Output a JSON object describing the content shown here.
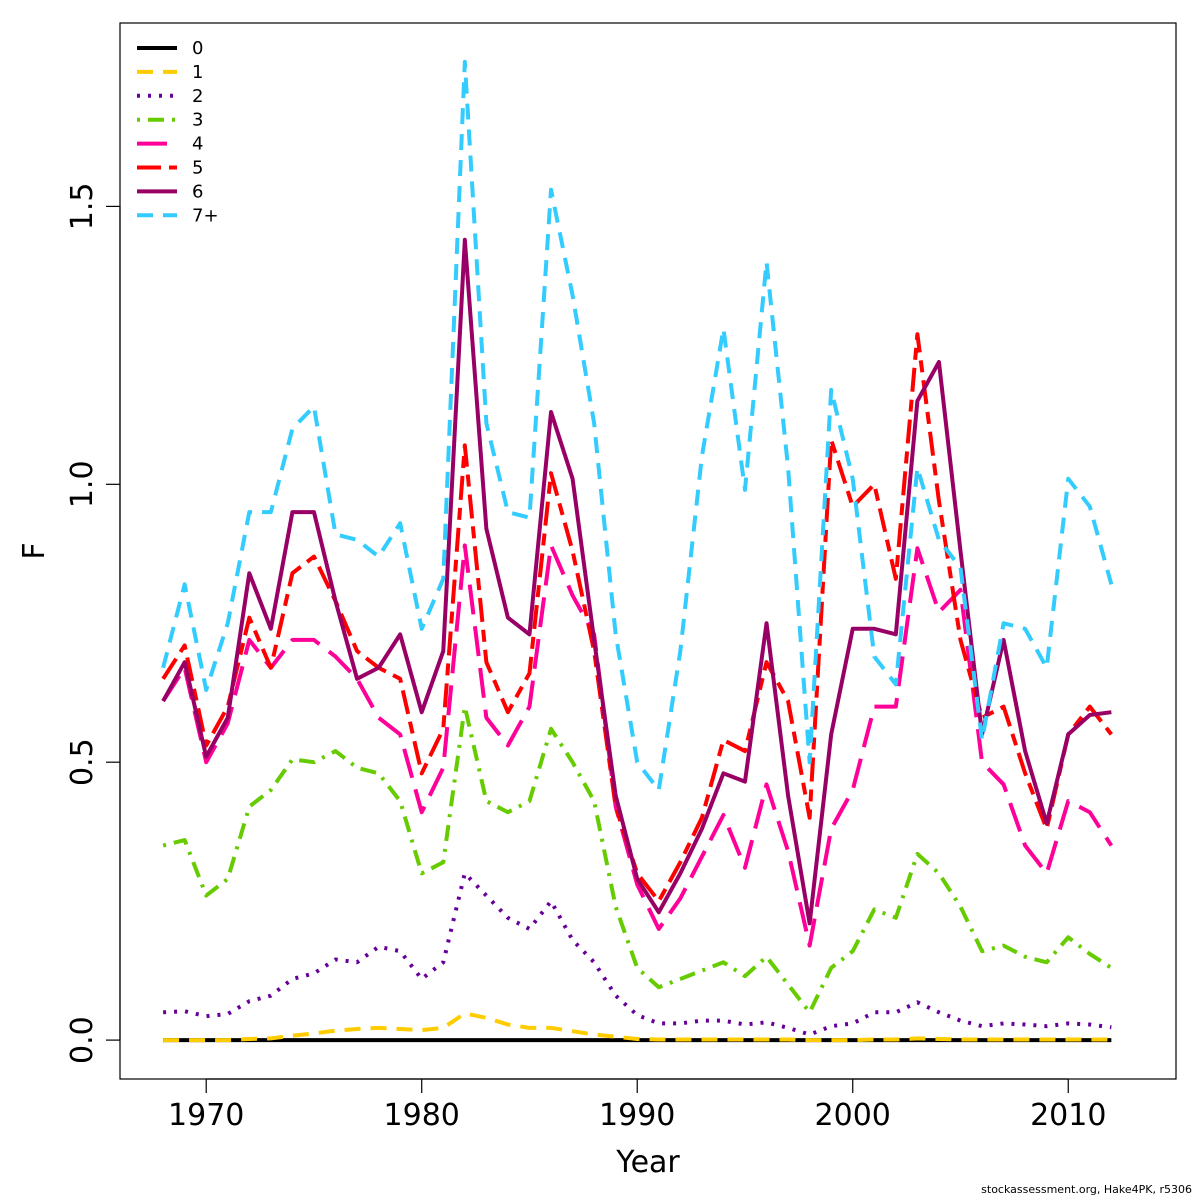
{
  "chart_data": {
    "type": "line",
    "title": "",
    "xlabel": "Year",
    "ylabel": "F",
    "xlim": [
      1966,
      2015
    ],
    "ylim": [
      -0.07,
      1.83
    ],
    "xticks": [
      1970,
      1980,
      1990,
      2000,
      2010
    ],
    "xtick_labels": [
      "1970",
      "1980",
      "1990",
      "2000",
      "2010"
    ],
    "yticks": [
      0.0,
      0.5,
      1.0,
      1.5
    ],
    "ytick_labels": [
      "0.0",
      "0.5",
      "1.0",
      "1.5"
    ],
    "grid": false,
    "legend_position": "top-left",
    "x": [
      1968,
      1969,
      1970,
      1971,
      1972,
      1973,
      1974,
      1975,
      1976,
      1977,
      1978,
      1979,
      1980,
      1981,
      1982,
      1983,
      1984,
      1985,
      1986,
      1987,
      1988,
      1989,
      1990,
      1991,
      1992,
      1993,
      1994,
      1995,
      1996,
      1997,
      1998,
      1999,
      2000,
      2001,
      2002,
      2003,
      2004,
      2005,
      2006,
      2007,
      2008,
      2009,
      2010,
      2011,
      2012
    ],
    "series": [
      {
        "name": "0",
        "color": "#000000",
        "dash": "solid",
        "values": [
          0,
          0,
          0,
          0,
          0,
          0,
          0,
          0,
          0,
          0,
          0,
          0,
          0,
          0,
          0,
          0,
          0,
          0,
          0,
          0,
          0,
          0,
          0,
          0,
          0,
          0,
          0,
          0,
          0,
          0,
          0,
          0,
          0,
          0,
          0,
          0,
          0,
          0,
          0,
          0,
          0,
          0,
          0,
          0,
          0
        ]
      },
      {
        "name": "1",
        "color": "#ffcc00",
        "dash": "dashed",
        "values": [
          0.0,
          0.0,
          0.0,
          0.0,
          0.002,
          0.003,
          0.008,
          0.012,
          0.017,
          0.02,
          0.022,
          0.02,
          0.018,
          0.022,
          0.048,
          0.04,
          0.028,
          0.022,
          0.022,
          0.016,
          0.01,
          0.006,
          0.002,
          0.001,
          0.001,
          0.001,
          0.001,
          0.001,
          0.001,
          0.001,
          0.0,
          0.0,
          0.0,
          0.001,
          0.001,
          0.003,
          0.002,
          0.001,
          0.001,
          0.001,
          0.001,
          0.001,
          0.001,
          0.001,
          0.001
        ]
      },
      {
        "name": "2",
        "color": "#660099",
        "dash": "dotted",
        "values": [
          0.05,
          0.052,
          0.043,
          0.047,
          0.07,
          0.08,
          0.11,
          0.12,
          0.145,
          0.14,
          0.168,
          0.16,
          0.11,
          0.14,
          0.3,
          0.26,
          0.22,
          0.2,
          0.25,
          0.18,
          0.14,
          0.08,
          0.045,
          0.03,
          0.03,
          0.035,
          0.035,
          0.028,
          0.032,
          0.022,
          0.01,
          0.025,
          0.03,
          0.05,
          0.05,
          0.068,
          0.05,
          0.035,
          0.025,
          0.03,
          0.028,
          0.025,
          0.03,
          0.028,
          0.023
        ]
      },
      {
        "name": "3",
        "color": "#66cc00",
        "dash": "dotdash",
        "values": [
          0.35,
          0.36,
          0.26,
          0.29,
          0.42,
          0.45,
          0.505,
          0.5,
          0.52,
          0.49,
          0.48,
          0.43,
          0.3,
          0.32,
          0.6,
          0.43,
          0.41,
          0.43,
          0.56,
          0.5,
          0.43,
          0.24,
          0.13,
          0.095,
          0.11,
          0.125,
          0.14,
          0.115,
          0.15,
          0.1,
          0.05,
          0.13,
          0.16,
          0.235,
          0.22,
          0.335,
          0.3,
          0.24,
          0.16,
          0.17,
          0.15,
          0.14,
          0.185,
          0.155,
          0.13
        ]
      },
      {
        "name": "4",
        "color": "#ff0099",
        "dash": "longdash",
        "values": [
          0.61,
          0.67,
          0.5,
          0.57,
          0.72,
          0.67,
          0.72,
          0.72,
          0.69,
          0.65,
          0.58,
          0.55,
          0.41,
          0.49,
          0.89,
          0.58,
          0.53,
          0.6,
          0.89,
          0.8,
          0.73,
          0.42,
          0.28,
          0.2,
          0.255,
          0.33,
          0.405,
          0.31,
          0.46,
          0.34,
          0.17,
          0.38,
          0.45,
          0.6,
          0.6,
          0.885,
          0.77,
          0.81,
          0.5,
          0.46,
          0.35,
          0.3,
          0.43,
          0.41,
          0.35
        ]
      },
      {
        "name": "5",
        "color": "#ff0000",
        "dash": "twodash",
        "values": [
          0.65,
          0.71,
          0.53,
          0.6,
          0.76,
          0.67,
          0.84,
          0.87,
          0.79,
          0.7,
          0.67,
          0.65,
          0.48,
          0.56,
          1.07,
          0.68,
          0.59,
          0.66,
          1.02,
          0.88,
          0.7,
          0.42,
          0.3,
          0.25,
          0.32,
          0.4,
          0.54,
          0.52,
          0.68,
          0.61,
          0.4,
          1.08,
          0.96,
          1.0,
          0.83,
          1.27,
          0.97,
          0.72,
          0.58,
          0.6,
          0.48,
          0.38,
          0.55,
          0.6,
          0.55
        ]
      },
      {
        "name": "6",
        "color": "#990066",
        "dash": "solid",
        "values": [
          0.61,
          0.68,
          0.51,
          0.58,
          0.84,
          0.74,
          0.95,
          0.95,
          0.79,
          0.65,
          0.67,
          0.73,
          0.59,
          0.7,
          1.44,
          0.92,
          0.76,
          0.73,
          1.13,
          1.01,
          0.72,
          0.44,
          0.29,
          0.23,
          0.3,
          0.38,
          0.48,
          0.465,
          0.75,
          0.44,
          0.21,
          0.55,
          0.74,
          0.74,
          0.73,
          1.15,
          1.22,
          0.88,
          0.55,
          0.72,
          0.52,
          0.39,
          0.55,
          0.585,
          0.59
        ]
      },
      {
        "name": "7+",
        "color": "#33ccff",
        "dash": "dashed",
        "values": [
          0.67,
          0.82,
          0.63,
          0.75,
          0.95,
          0.95,
          1.1,
          1.14,
          0.91,
          0.9,
          0.87,
          0.93,
          0.74,
          0.83,
          1.76,
          1.11,
          0.95,
          0.94,
          1.53,
          1.34,
          1.11,
          0.73,
          0.5,
          0.45,
          0.7,
          1.05,
          1.28,
          0.99,
          1.4,
          1.03,
          0.5,
          1.17,
          1.01,
          0.69,
          0.64,
          1.03,
          0.9,
          0.85,
          0.54,
          0.75,
          0.74,
          0.67,
          1.01,
          0.96,
          0.82
        ]
      }
    ]
  },
  "credit": "stockassessment.org, Hake4PK, r5306"
}
